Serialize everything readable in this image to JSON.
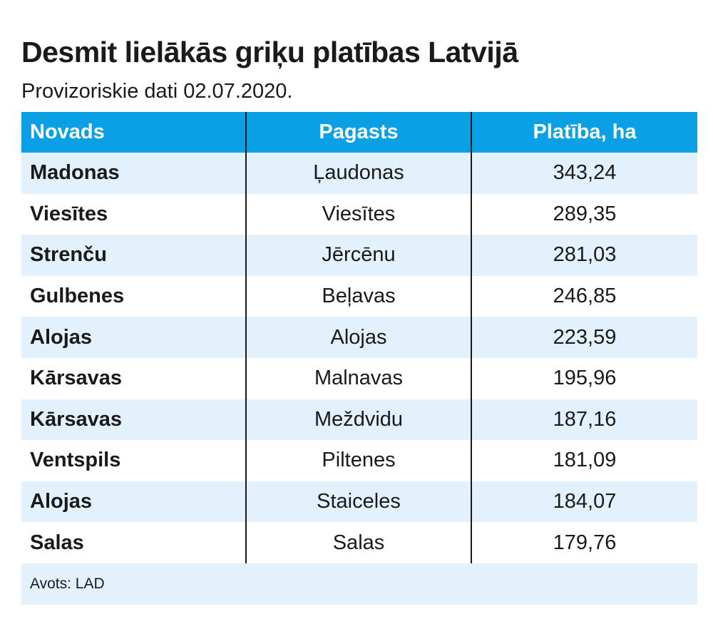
{
  "title": "Desmit lielākās griķu platības Latvijā",
  "subtitle": "Provizoriskie dati 02.07.2020.",
  "table": {
    "headers": [
      "Novads",
      "Pagasts",
      "Platība, ha"
    ],
    "rows": [
      [
        "Madonas",
        "Ļaudonas",
        "343,24"
      ],
      [
        "Viesītes",
        "Viesītes",
        "289,35"
      ],
      [
        "Strenču",
        "Jērcēnu",
        "281,03"
      ],
      [
        "Gulbenes",
        "Beļavas",
        "246,85"
      ],
      [
        "Alojas",
        "Alojas",
        "223,59"
      ],
      [
        "Kārsavas",
        "Malnavas",
        "195,96"
      ],
      [
        "Kārsavas",
        "Meždvidu",
        "187,16"
      ],
      [
        "Ventspils",
        "Piltenes",
        "181,09"
      ],
      [
        "Alojas",
        "Staiceles",
        "184,07"
      ],
      [
        "Salas",
        "Salas",
        "179,76"
      ]
    ]
  },
  "source": "Avots: LAD",
  "colors": {
    "header_bg": "#0aa0e6",
    "stripe_bg": "#e2f1fb",
    "text": "#1a1a1a"
  }
}
